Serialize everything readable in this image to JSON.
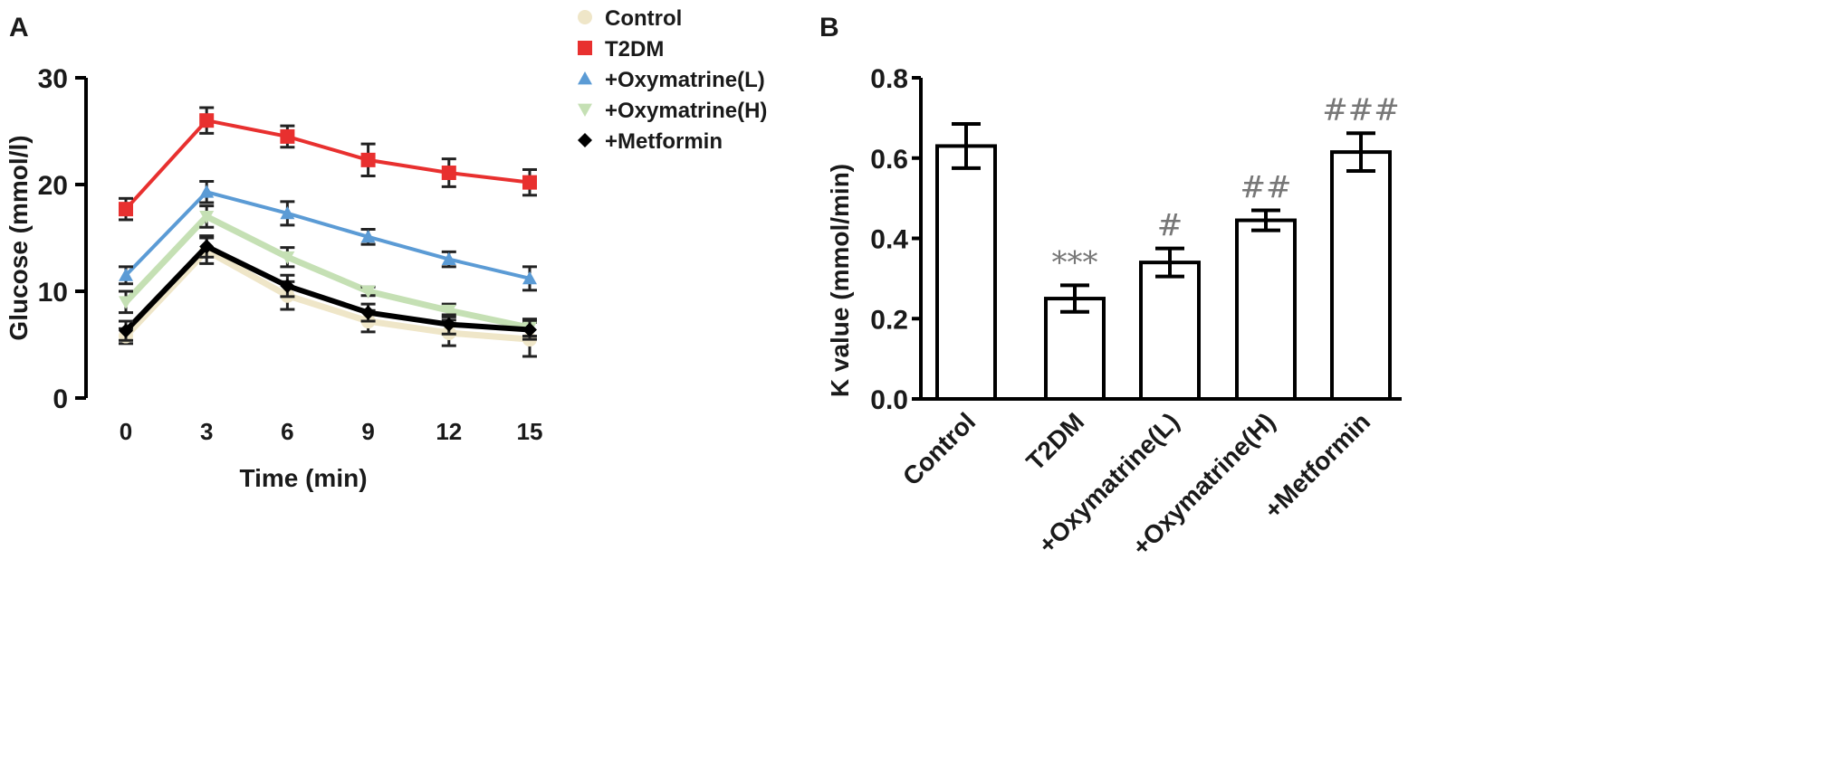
{
  "chart_data": [
    {
      "panel": "A",
      "type": "line",
      "xlabel": "Time (min)",
      "ylabel": "Glucose (mmol/l)",
      "x": [
        0,
        3,
        6,
        9,
        12,
        15
      ],
      "xticks": [
        "0",
        "3",
        "6",
        "9",
        "12",
        "15"
      ],
      "yticks": [
        "0",
        "10",
        "20",
        "30"
      ],
      "ylim": [
        0,
        30
      ],
      "legend_position": "top-right",
      "series": [
        {
          "name": "Control",
          "color": "#efe6c8",
          "marker": "circle",
          "values": [
            5.8,
            13.8,
            9.6,
            7.2,
            6.1,
            5.5
          ],
          "errors": [
            0.7,
            1.2,
            1.3,
            1.0,
            1.2,
            1.6
          ]
        },
        {
          "name": "T2DM",
          "color": "#e8302f",
          "marker": "square",
          "values": [
            17.7,
            26.0,
            24.5,
            22.3,
            21.1,
            20.2
          ],
          "errors": [
            1.0,
            1.2,
            1.0,
            1.5,
            1.3,
            1.2
          ]
        },
        {
          "name": "+Oxymatrine(L)",
          "color": "#5b9bd5",
          "marker": "triangle",
          "values": [
            11.5,
            19.3,
            17.3,
            15.1,
            13.0,
            11.2
          ],
          "errors": [
            0.8,
            1.0,
            1.1,
            0.7,
            0.7,
            1.1
          ]
        },
        {
          "name": "+Oxymatrine(H)",
          "color": "#c5e0b4",
          "marker": "triangle-down",
          "values": [
            9.0,
            17.0,
            13.2,
            10.0,
            8.2,
            6.6
          ],
          "errors": [
            1.0,
            1.0,
            0.9,
            0.4,
            0.6,
            0.8
          ]
        },
        {
          "name": "+Metformin",
          "color": "#000000",
          "marker": "diamond",
          "values": [
            6.3,
            14.2,
            10.5,
            8.0,
            6.9,
            6.4
          ],
          "errors": [
            0.9,
            1.0,
            1.0,
            0.8,
            0.9,
            0.9
          ]
        }
      ]
    },
    {
      "panel": "B",
      "type": "bar",
      "ylabel": "K value (mmol/min)",
      "categories": [
        "Control",
        "T2DM",
        "+Oxymatrine(L)",
        "+Oxymatrine(H)",
        "+Metformin"
      ],
      "values": [
        0.63,
        0.25,
        0.34,
        0.445,
        0.615
      ],
      "errors": [
        0.055,
        0.033,
        0.035,
        0.025,
        0.047
      ],
      "annotations": [
        "",
        "***",
        "#",
        "##",
        "###"
      ],
      "yticks": [
        "0.0",
        "0.2",
        "0.4",
        "0.6",
        "0.8"
      ],
      "ylim": [
        0,
        0.8
      ]
    }
  ]
}
